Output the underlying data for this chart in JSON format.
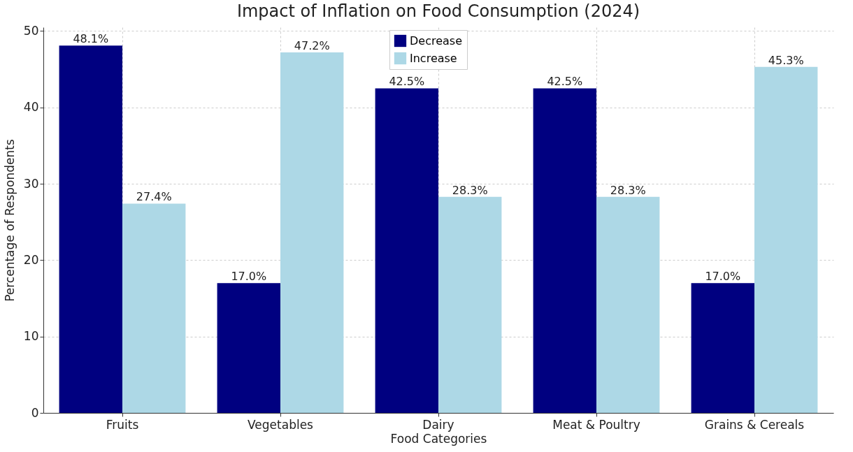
{
  "chart_data": {
    "type": "bar",
    "title": "Impact of Inflation on Food Consumption (2024)",
    "xlabel": "Food Categories",
    "ylabel": "Percentage of Respondents",
    "categories": [
      "Fruits",
      "Vegetables",
      "Dairy",
      "Meat & Poultry",
      "Grains & Cereals"
    ],
    "series": [
      {
        "name": "Decrease",
        "color": "#000080",
        "values": [
          48.1,
          17.0,
          42.5,
          42.5,
          17.0
        ],
        "value_labels": [
          "48.1%",
          "17.0%",
          "42.5%",
          "42.5%",
          "17.0%"
        ]
      },
      {
        "name": "Increase",
        "color": "#add8e6",
        "values": [
          27.4,
          47.2,
          28.3,
          28.3,
          45.3
        ],
        "value_labels": [
          "27.4%",
          "47.2%",
          "28.3%",
          "28.3%",
          "45.3%"
        ]
      }
    ],
    "ylim": [
      0,
      50.5
    ],
    "yticks": [
      0,
      10,
      20,
      30,
      40,
      50
    ],
    "grid": true,
    "legend": "top"
  }
}
